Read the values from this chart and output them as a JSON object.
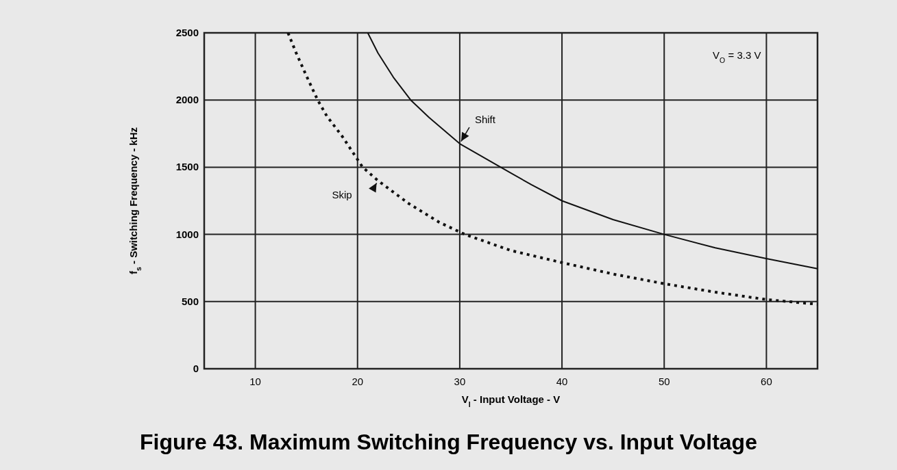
{
  "chart_data": {
    "type": "line",
    "title": "Figure 43.  Maximum Switching Frequency vs. Input Voltage",
    "xlabel": "V$_{I}$ - Input Voltage - V",
    "ylabel": "f$_{s}$ - Switching Frequency - kHz",
    "annotations": [
      "V$_{O}$ = 3.3 V"
    ],
    "xlim": [
      5,
      65
    ],
    "xticks": [
      10,
      20,
      30,
      40,
      50,
      60
    ],
    "ylim": [
      0,
      2500
    ],
    "yticks": [
      0,
      500,
      1000,
      1500,
      2000,
      2500
    ],
    "grid": true,
    "marker": "none",
    "series": [
      {
        "name": "Shift",
        "color": "#111111",
        "line_style": "solid",
        "x": [
          21,
          22,
          23.5,
          25.2,
          27,
          30,
          34,
          37,
          40,
          45,
          50,
          55,
          60,
          65
        ],
        "values": [
          2500,
          2350,
          2170,
          2000,
          1870,
          1675,
          1500,
          1370,
          1250,
          1110,
          1000,
          900,
          820,
          745
        ]
      },
      {
        "name": "Skip",
        "color": "#111111",
        "line_style": "dotted",
        "x": [
          13.2,
          14,
          15,
          16.1,
          17,
          18.5,
          20.5,
          22,
          25,
          28,
          30.5,
          35,
          40,
          45,
          50,
          55,
          60,
          65
        ],
        "values": [
          2500,
          2350,
          2180,
          2000,
          1880,
          1730,
          1500,
          1400,
          1230,
          1090,
          1000,
          880,
          790,
          705,
          633,
          570,
          515,
          480
        ]
      }
    ]
  }
}
